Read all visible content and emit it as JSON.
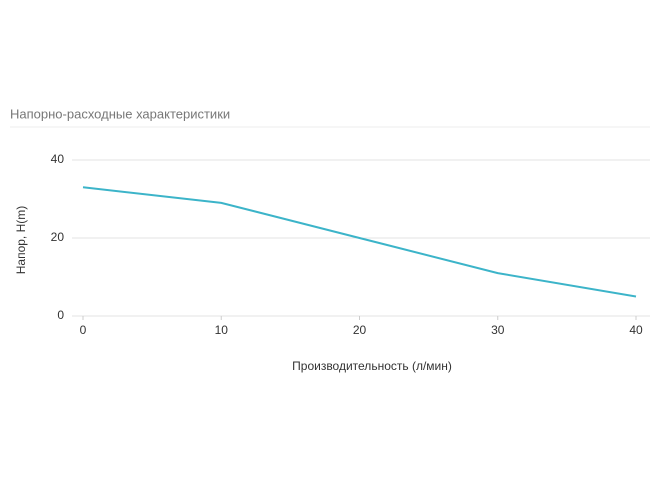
{
  "chart_data": {
    "type": "line",
    "title": "Напорно-расходные характеристики",
    "x_label": "Производительность (л/мин)",
    "y_label": "Напор, H(m)",
    "x": [
      0,
      10,
      20,
      30,
      40
    ],
    "series": [
      {
        "color": "#3cb4c9",
        "values": [
          33,
          29,
          20,
          11,
          5
        ]
      }
    ],
    "xlim": [
      0,
      40
    ],
    "xticks": [
      0,
      10,
      20,
      30,
      40
    ],
    "ylim": [
      0,
      40
    ],
    "yticks": [
      0,
      20,
      40
    ],
    "grid": true
  }
}
